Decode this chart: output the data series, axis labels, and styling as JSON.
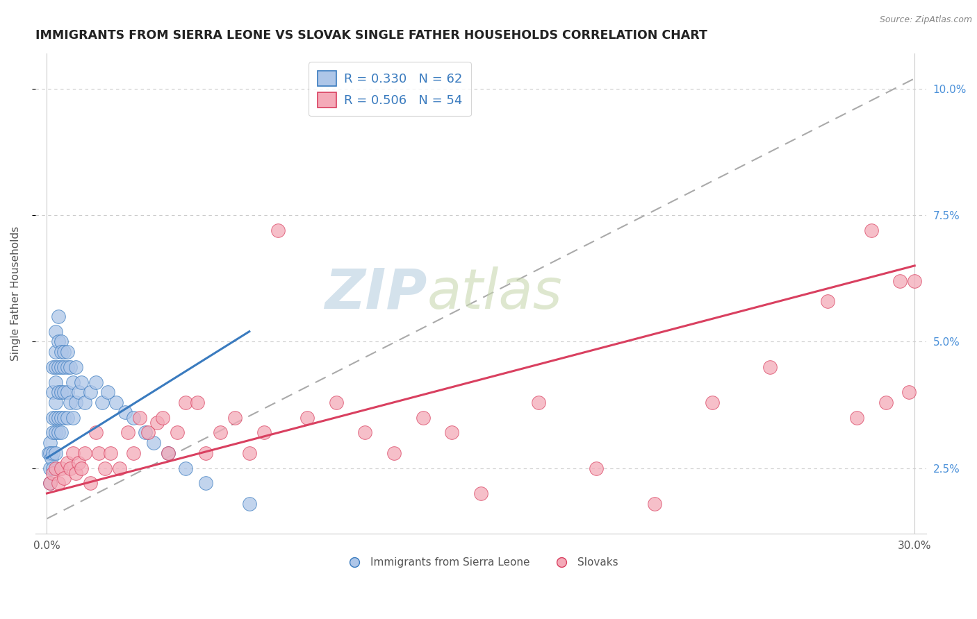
{
  "title": "IMMIGRANTS FROM SIERRA LEONE VS SLOVAK SINGLE FATHER HOUSEHOLDS CORRELATION CHART",
  "source_text": "Source: ZipAtlas.com",
  "ylabel_left": "Single Father Households",
  "series1_label": "Immigrants from Sierra Leone",
  "series2_label": "Slovaks",
  "series1_color": "#aec6e8",
  "series2_color": "#f4aab8",
  "series1_line_color": "#3a7bbf",
  "series2_line_color": "#d94060",
  "series1_R": 0.33,
  "series1_N": 62,
  "series2_R": 0.506,
  "series2_N": 54,
  "xlim": [
    -0.004,
    0.304
  ],
  "ylim": [
    0.012,
    0.107
  ],
  "xticks": [
    0.0,
    0.05,
    0.1,
    0.15,
    0.2,
    0.25,
    0.3
  ],
  "yticks": [
    0.025,
    0.05,
    0.075,
    0.1
  ],
  "xticklabels": [
    "0.0%",
    "",
    "",
    "",
    "",
    "",
    "30.0%"
  ],
  "yticklabels_right": [
    "2.5%",
    "5.0%",
    "7.5%",
    "10.0%"
  ],
  "watermark_zip": "ZIP",
  "watermark_atlas": "atlas",
  "watermark_color_zip": "#b8cfe0",
  "watermark_color_atlas": "#c8d8b0",
  "title_color": "#222222",
  "title_fontsize": 12.5,
  "legend_text_color": "#3a7bbf",
  "series1_x": [
    0.0005,
    0.001,
    0.001,
    0.001,
    0.001,
    0.0015,
    0.002,
    0.002,
    0.002,
    0.002,
    0.002,
    0.002,
    0.003,
    0.003,
    0.003,
    0.003,
    0.003,
    0.003,
    0.003,
    0.003,
    0.004,
    0.004,
    0.004,
    0.004,
    0.004,
    0.004,
    0.005,
    0.005,
    0.005,
    0.005,
    0.005,
    0.005,
    0.006,
    0.006,
    0.006,
    0.006,
    0.007,
    0.007,
    0.007,
    0.007,
    0.008,
    0.008,
    0.009,
    0.009,
    0.01,
    0.01,
    0.011,
    0.012,
    0.013,
    0.015,
    0.017,
    0.019,
    0.021,
    0.024,
    0.027,
    0.03,
    0.034,
    0.037,
    0.042,
    0.048,
    0.055,
    0.07
  ],
  "series1_y": [
    0.028,
    0.03,
    0.028,
    0.025,
    0.022,
    0.027,
    0.045,
    0.04,
    0.035,
    0.032,
    0.028,
    0.025,
    0.052,
    0.048,
    0.045,
    0.042,
    0.038,
    0.035,
    0.032,
    0.028,
    0.055,
    0.05,
    0.045,
    0.04,
    0.035,
    0.032,
    0.05,
    0.048,
    0.045,
    0.04,
    0.035,
    0.032,
    0.048,
    0.045,
    0.04,
    0.035,
    0.048,
    0.045,
    0.04,
    0.035,
    0.045,
    0.038,
    0.042,
    0.035,
    0.045,
    0.038,
    0.04,
    0.042,
    0.038,
    0.04,
    0.042,
    0.038,
    0.04,
    0.038,
    0.036,
    0.035,
    0.032,
    0.03,
    0.028,
    0.025,
    0.022,
    0.018
  ],
  "series2_x": [
    0.001,
    0.002,
    0.003,
    0.004,
    0.005,
    0.006,
    0.007,
    0.008,
    0.009,
    0.01,
    0.011,
    0.012,
    0.013,
    0.015,
    0.017,
    0.018,
    0.02,
    0.022,
    0.025,
    0.028,
    0.03,
    0.032,
    0.035,
    0.038,
    0.04,
    0.042,
    0.045,
    0.048,
    0.052,
    0.055,
    0.06,
    0.065,
    0.07,
    0.075,
    0.08,
    0.09,
    0.1,
    0.11,
    0.12,
    0.13,
    0.14,
    0.15,
    0.17,
    0.19,
    0.21,
    0.23,
    0.25,
    0.27,
    0.28,
    0.285,
    0.29,
    0.295,
    0.298,
    0.3
  ],
  "series2_y": [
    0.022,
    0.024,
    0.025,
    0.022,
    0.025,
    0.023,
    0.026,
    0.025,
    0.028,
    0.024,
    0.026,
    0.025,
    0.028,
    0.022,
    0.032,
    0.028,
    0.025,
    0.028,
    0.025,
    0.032,
    0.028,
    0.035,
    0.032,
    0.034,
    0.035,
    0.028,
    0.032,
    0.038,
    0.038,
    0.028,
    0.032,
    0.035,
    0.028,
    0.032,
    0.072,
    0.035,
    0.038,
    0.032,
    0.028,
    0.035,
    0.032,
    0.02,
    0.038,
    0.025,
    0.018,
    0.038,
    0.045,
    0.058,
    0.035,
    0.072,
    0.038,
    0.062,
    0.04,
    0.062
  ],
  "dashed_line_x": [
    0.0,
    0.3
  ],
  "dashed_line_y": [
    0.015,
    0.102
  ],
  "blue_trend_x": [
    0.0,
    0.07
  ],
  "blue_trend_y": [
    0.027,
    0.052
  ],
  "pink_trend_x": [
    0.0,
    0.3
  ],
  "pink_trend_y": [
    0.02,
    0.065
  ]
}
